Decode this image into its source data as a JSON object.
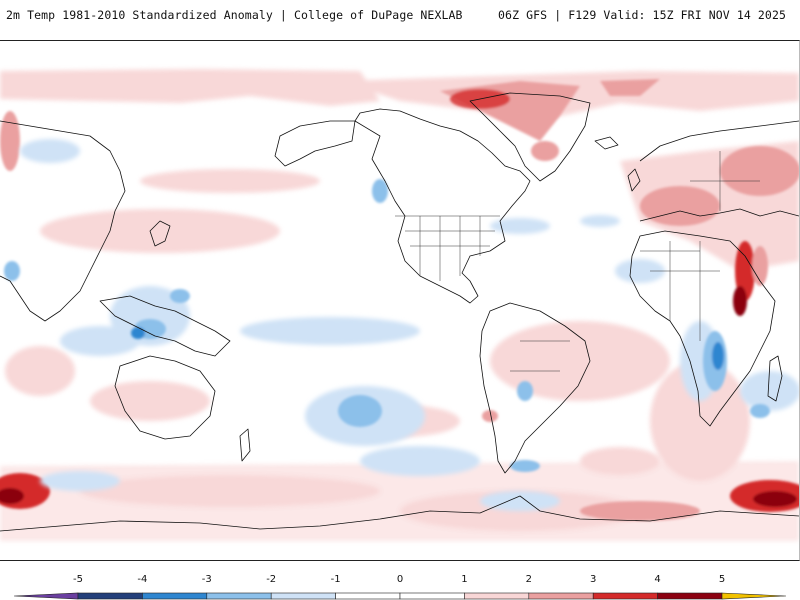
{
  "header": {
    "left_title": "2m Temp 1981-2010 Standardized Anomaly | College of DuPage NEXLAB",
    "right_title": "06Z GFS | F129 Valid: 15Z FRI NOV 14 2025"
  },
  "map": {
    "projection": "equirectangular, Pacific-centered",
    "variable": "2m temperature standardized anomaly",
    "colors": {
      "ocean_land_background": "#ffffff",
      "coastline": "#111111"
    }
  },
  "colorbar": {
    "labels": [
      "-5",
      "-4",
      "-3",
      "-2",
      "-1",
      "0",
      "1",
      "2",
      "3",
      "4",
      "5"
    ],
    "bins": [
      {
        "range": "< -5",
        "color": "#6a3fa0"
      },
      {
        "range": "-5 to -4",
        "color": "#233f7a"
      },
      {
        "range": "-4 to -3",
        "color": "#2e86d0"
      },
      {
        "range": "-3 to -2",
        "color": "#8cc0ea"
      },
      {
        "range": "-2 to -1",
        "color": "#cfe2f6"
      },
      {
        "range": "-1 to 0",
        "color": "#ffffff"
      },
      {
        "range": "0 to 1",
        "color": "#ffffff"
      },
      {
        "range": "1 to 2",
        "color": "#f8d6d6"
      },
      {
        "range": "2 to 3",
        "color": "#eaa0a0"
      },
      {
        "range": "3 to 4",
        "color": "#d42a2a"
      },
      {
        "range": "4 to 5",
        "color": "#8b0010"
      },
      {
        "range": "> 5",
        "color": "#f2c200"
      }
    ]
  }
}
